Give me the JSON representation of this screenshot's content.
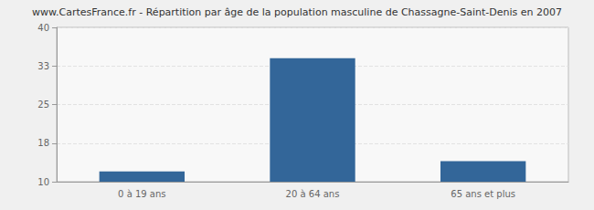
{
  "chart_data": {
    "type": "bar",
    "title": "www.CartesFrance.fr - Répartition par âge de la population masculine de Chassagne-Saint-Denis en 2007",
    "categories": [
      "0 à 19 ans",
      "20 à 64 ans",
      "65 ans et plus"
    ],
    "values": [
      12,
      34,
      14
    ],
    "color": "#336699",
    "ylim": [
      10,
      40
    ],
    "yticks": [
      10,
      {
        "value": 17.5,
        "label": "18"
      },
      25,
      {
        "value": 32.5,
        "label": "33"
      },
      40
    ],
    "grid": true
  }
}
